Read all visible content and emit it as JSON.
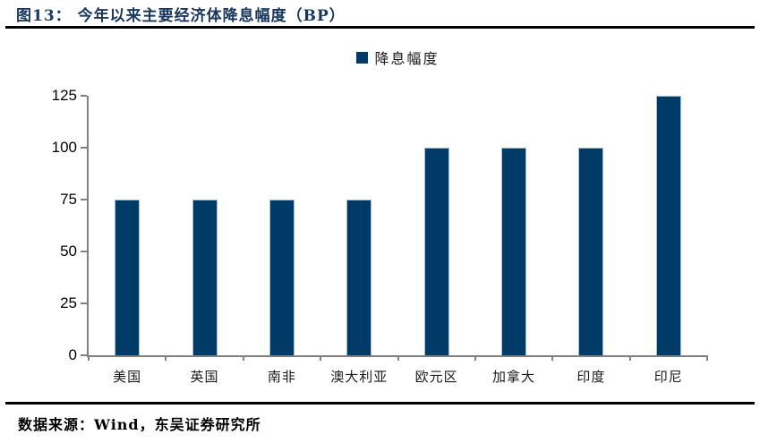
{
  "figure": {
    "title": "图13： 今年以来主要经济体降息幅度（BP）",
    "source": "数据来源：Wind，东吴证券研究所"
  },
  "legend": {
    "marker_icon": "filled-square",
    "label": "降息幅度"
  },
  "chart_data": {
    "type": "bar",
    "title": "今年以来主要经济体降息幅度（BP）",
    "series_name": "降息幅度",
    "categories": [
      "美国",
      "英国",
      "南非",
      "澳大利亚",
      "欧元区",
      "加拿大",
      "印度",
      "印尼"
    ],
    "values": [
      75,
      75,
      75,
      75,
      100,
      100,
      100,
      125
    ],
    "xlabel": "",
    "ylabel": "",
    "ylim": [
      0,
      125
    ],
    "yticks": [
      0,
      25,
      50,
      75,
      100,
      125
    ],
    "grid": false,
    "legend_position": "top-center"
  },
  "colors": {
    "title": "#17375E",
    "bar": "#003A66",
    "bar_border": "#A7BDD4",
    "axis": "#808080",
    "rule": "#000000"
  }
}
